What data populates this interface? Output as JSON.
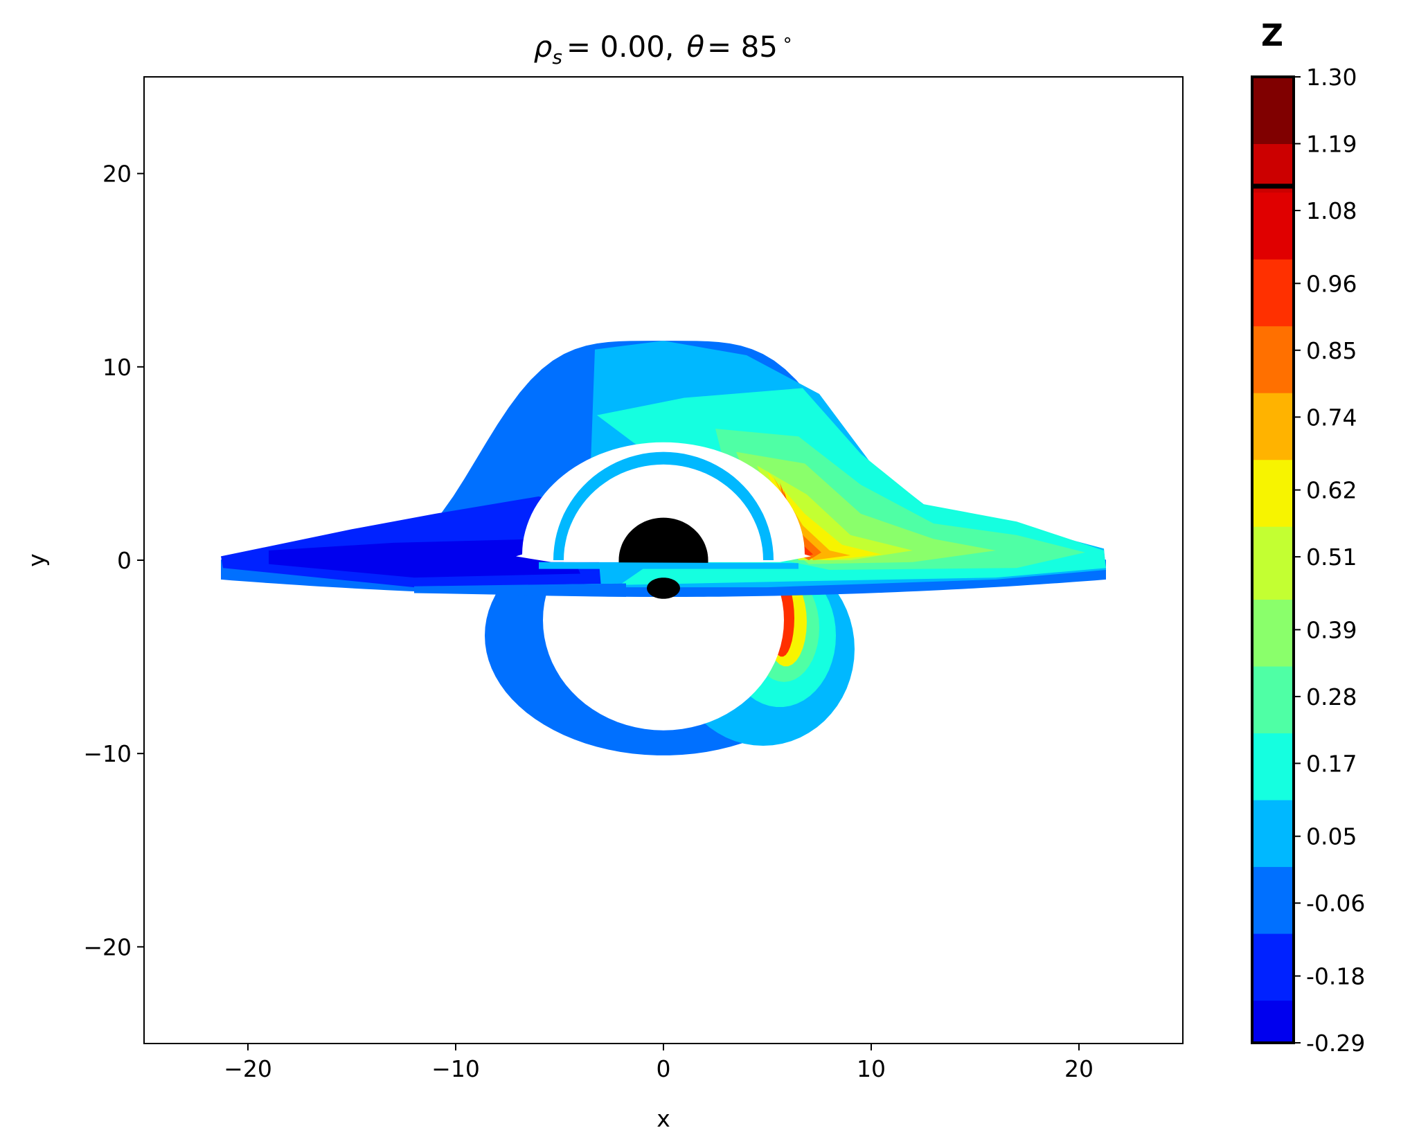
{
  "chart_data": {
    "type": "heatmap",
    "title": {
      "rho_symbol": "ρ",
      "rho_subscript": "s",
      "rho_value": "= 0.00,",
      "theta_symbol": "θ",
      "theta_value": "= 85",
      "degree": "∘"
    },
    "xlabel": "x",
    "ylabel": "y",
    "xlim": [
      -25,
      25
    ],
    "ylim": [
      -25,
      25
    ],
    "xticks": [
      {
        "value": -20,
        "label": "−20"
      },
      {
        "value": -10,
        "label": "−10"
      },
      {
        "value": 0,
        "label": "0"
      },
      {
        "value": 10,
        "label": "10"
      },
      {
        "value": 20,
        "label": "20"
      }
    ],
    "yticks": [
      {
        "value": -20,
        "label": "−20"
      },
      {
        "value": -10,
        "label": "−10"
      },
      {
        "value": 0,
        "label": "0"
      },
      {
        "value": 10,
        "label": "10"
      },
      {
        "value": 20,
        "label": "20"
      }
    ],
    "grid": false,
    "colorbar": {
      "title": "Z",
      "ticks": [
        "-0.29",
        "-0.18",
        "-0.06",
        "0.05",
        "0.17",
        "0.28",
        "0.39",
        "0.51",
        "0.62",
        "0.74",
        "0.85",
        "0.96",
        "1.08",
        "1.19",
        "1.30"
      ],
      "range": [
        -0.29,
        1.3
      ],
      "highlight_value": 1.12,
      "bands": [
        {
          "from": -0.29,
          "to": -0.22,
          "color": "#0000ee"
        },
        {
          "from": -0.22,
          "to": -0.11,
          "color": "#0022ff"
        },
        {
          "from": -0.11,
          "to": 0.0,
          "color": "#0070ff"
        },
        {
          "from": 0.0,
          "to": 0.11,
          "color": "#00b8ff"
        },
        {
          "from": 0.11,
          "to": 0.22,
          "color": "#15ffe0"
        },
        {
          "from": 0.22,
          "to": 0.33,
          "color": "#4fffa5"
        },
        {
          "from": 0.33,
          "to": 0.44,
          "color": "#8aff6b"
        },
        {
          "from": 0.44,
          "to": 0.56,
          "color": "#c3ff32"
        },
        {
          "from": 0.56,
          "to": 0.67,
          "color": "#f7f400"
        },
        {
          "from": 0.67,
          "to": 0.78,
          "color": "#ffb300"
        },
        {
          "from": 0.78,
          "to": 0.89,
          "color": "#ff7000"
        },
        {
          "from": 0.89,
          "to": 1.0,
          "color": "#ff3000"
        },
        {
          "from": 1.0,
          "to": 1.11,
          "color": "#e00000"
        },
        {
          "from": 1.11,
          "to": 1.19,
          "color": "#cc0000"
        },
        {
          "from": 1.19,
          "to": 1.3,
          "color": "#800000"
        }
      ]
    },
    "features": {
      "shadow_color": "#000000",
      "disk_colors": {
        "deep_blue": "#0000ee",
        "blue": "#0022ff",
        "mid_blue": "#0070ff",
        "sky": "#00b8ff",
        "cyan": "#15ffe0",
        "aqua_green": "#4fffa5",
        "green": "#8aff6b",
        "yellow_green": "#c3ff32",
        "yellow": "#f7f400",
        "orange": "#ffb300",
        "dark_orange": "#ff7000",
        "red": "#ff3000"
      }
    }
  }
}
